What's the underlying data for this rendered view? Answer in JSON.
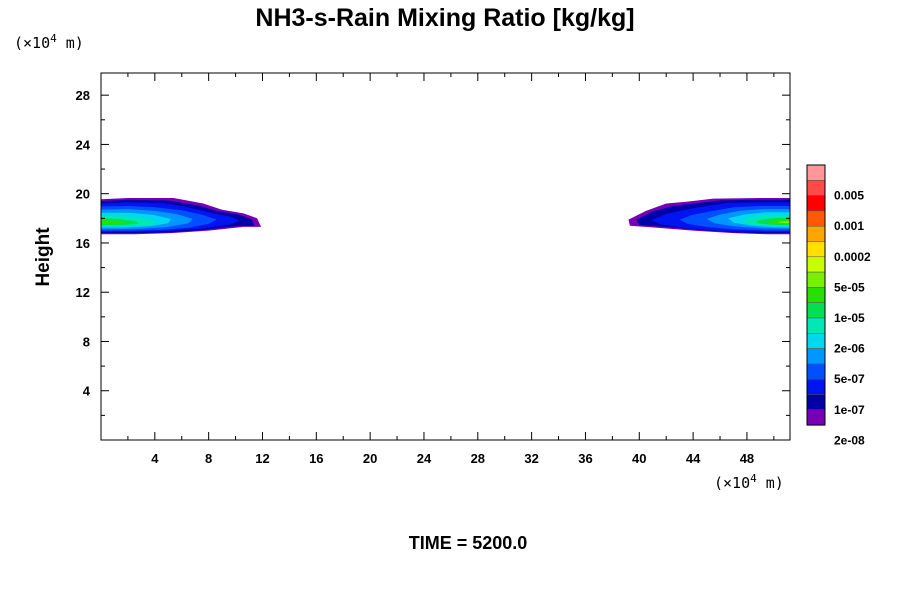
{
  "chart_data": {
    "type": "contour",
    "title": "NH3-s-Rain Mixing Ratio [kg/kg]",
    "xlabel": "",
    "ylabel": "Height",
    "x_unit": {
      "prefix": "(×10",
      "exp": "4",
      "suffix": " m)"
    },
    "y_unit": {
      "prefix": "(×10",
      "exp": "4",
      "suffix": " m)"
    },
    "xlim": [
      0,
      51.2
    ],
    "ylim": [
      0,
      29.8
    ],
    "x_ticks": [
      4,
      8,
      12,
      16,
      20,
      24,
      28,
      32,
      36,
      40,
      44,
      48
    ],
    "y_ticks": [
      4,
      8,
      12,
      16,
      20,
      24,
      28
    ],
    "x_minor_step": 2,
    "y_minor_step": 2,
    "time_label": "TIME = 5200.0",
    "colorbar": {
      "colors": [
        "#ff9999",
        "#ff4a4a",
        "#ff0000",
        "#ff5a00",
        "#ffa500",
        "#ffe000",
        "#c8ff00",
        "#78f000",
        "#28e000",
        "#00e050",
        "#00e8b4",
        "#00d8f0",
        "#0096ff",
        "#0050ff",
        "#0014f0",
        "#0000a8",
        "#7800b4"
      ],
      "labels": [
        {
          "text": "0.005",
          "boundary": 2
        },
        {
          "text": "0.001",
          "boundary": 4
        },
        {
          "text": "0.0002",
          "boundary": 6
        },
        {
          "text": "5e-05",
          "boundary": 8
        },
        {
          "text": "1e-05",
          "boundary": 10
        },
        {
          "text": "2e-06",
          "boundary": 12
        },
        {
          "text": "5e-07",
          "boundary": 14
        },
        {
          "text": "1e-07",
          "boundary": 16
        },
        {
          "text": "2e-08",
          "boundary": 18
        }
      ]
    },
    "regions": [
      {
        "side": "left",
        "color": "#7800b4",
        "x": [
          [
            0,
            19.55
          ],
          [
            2,
            19.65
          ],
          [
            5.4,
            19.65
          ],
          [
            7.6,
            19.2
          ],
          [
            9,
            18.7
          ],
          [
            10.6,
            18.4
          ],
          [
            11.6,
            18.0
          ],
          [
            11.9,
            17.3
          ],
          [
            10.6,
            17.3
          ],
          [
            8,
            17.0
          ],
          [
            5.2,
            16.8
          ],
          [
            2.5,
            16.7
          ],
          [
            0,
            16.7
          ]
        ]
      },
      {
        "side": "left",
        "color": "#0000a8",
        "x": [
          [
            0,
            19.4
          ],
          [
            2,
            19.5
          ],
          [
            5,
            19.45
          ],
          [
            7.2,
            19.05
          ],
          [
            8.6,
            18.6
          ],
          [
            10.3,
            18.3
          ],
          [
            11.2,
            17.9
          ],
          [
            11.4,
            17.4
          ],
          [
            10,
            17.35
          ],
          [
            7.6,
            17.05
          ],
          [
            5,
            16.85
          ],
          [
            2.4,
            16.8
          ],
          [
            0,
            16.8
          ]
        ]
      },
      {
        "side": "left",
        "color": "#0014f0",
        "x": [
          [
            0,
            19.2
          ],
          [
            2,
            19.3
          ],
          [
            4.6,
            19.25
          ],
          [
            6.5,
            18.9
          ],
          [
            8,
            18.5
          ],
          [
            9.6,
            18.15
          ],
          [
            10.3,
            17.8
          ],
          [
            9.6,
            17.5
          ],
          [
            7.4,
            17.15
          ],
          [
            4.8,
            16.95
          ],
          [
            2.2,
            16.9
          ],
          [
            0,
            16.9
          ]
        ]
      },
      {
        "side": "left",
        "color": "#0050ff",
        "x": [
          [
            0,
            18.95
          ],
          [
            2,
            19.0
          ],
          [
            4,
            18.9
          ],
          [
            6,
            18.65
          ],
          [
            7.5,
            18.3
          ],
          [
            8.6,
            17.9
          ],
          [
            8,
            17.55
          ],
          [
            6.5,
            17.25
          ],
          [
            4.5,
            17.05
          ],
          [
            2,
            17.0
          ],
          [
            0,
            17.0
          ]
        ]
      },
      {
        "side": "left",
        "color": "#0096ff",
        "x": [
          [
            0,
            18.7
          ],
          [
            2,
            18.75
          ],
          [
            4,
            18.6
          ],
          [
            5.6,
            18.35
          ],
          [
            6.8,
            17.95
          ],
          [
            6.5,
            17.6
          ],
          [
            5,
            17.3
          ],
          [
            3,
            17.15
          ],
          [
            0,
            17.1
          ]
        ]
      },
      {
        "side": "left",
        "color": "#00d8f0",
        "x": [
          [
            0,
            18.45
          ],
          [
            2,
            18.45
          ],
          [
            3.8,
            18.3
          ],
          [
            5.2,
            17.95
          ],
          [
            5,
            17.6
          ],
          [
            3.6,
            17.35
          ],
          [
            1.6,
            17.25
          ],
          [
            0,
            17.25
          ]
        ]
      },
      {
        "side": "left",
        "color": "#00e8b4",
        "x": [
          [
            0,
            18.2
          ],
          [
            1.6,
            18.2
          ],
          [
            3.2,
            18.0
          ],
          [
            4.2,
            17.7
          ],
          [
            3.5,
            17.45
          ],
          [
            1.6,
            17.35
          ],
          [
            0,
            17.35
          ]
        ]
      },
      {
        "side": "left",
        "color": "#00e050",
        "x": [
          [
            0,
            18.0
          ],
          [
            1.4,
            17.95
          ],
          [
            2.6,
            17.75
          ],
          [
            2.8,
            17.55
          ],
          [
            1.6,
            17.45
          ],
          [
            0,
            17.45
          ]
        ]
      },
      {
        "side": "left",
        "color": "#28e000",
        "x": [
          [
            0,
            17.85
          ],
          [
            1.2,
            17.8
          ],
          [
            1.9,
            17.65
          ],
          [
            1.2,
            17.52
          ],
          [
            0,
            17.52
          ]
        ]
      },
      {
        "side": "right",
        "color": "#7800b4",
        "x": [
          [
            51.2,
            19.65
          ],
          [
            49,
            19.65
          ],
          [
            45.5,
            19.6
          ],
          [
            43.5,
            19.35
          ],
          [
            42,
            19.2
          ],
          [
            40.5,
            18.6
          ],
          [
            39.2,
            17.9
          ],
          [
            39.3,
            17.4
          ],
          [
            41.2,
            17.25
          ],
          [
            44,
            17.0
          ],
          [
            47,
            16.8
          ],
          [
            49.5,
            16.7
          ],
          [
            51.2,
            16.7
          ]
        ]
      },
      {
        "side": "right",
        "color": "#0000a8",
        "x": [
          [
            51.2,
            19.5
          ],
          [
            49,
            19.5
          ],
          [
            46,
            19.45
          ],
          [
            44,
            19.2
          ],
          [
            42.5,
            19.0
          ],
          [
            41,
            18.55
          ],
          [
            39.8,
            17.9
          ],
          [
            40,
            17.45
          ],
          [
            42,
            17.3
          ],
          [
            44.5,
            17.05
          ],
          [
            47.2,
            16.85
          ],
          [
            49.6,
            16.8
          ],
          [
            51.2,
            16.8
          ]
        ]
      },
      {
        "side": "right",
        "color": "#0014f0",
        "x": [
          [
            51.2,
            19.3
          ],
          [
            49,
            19.3
          ],
          [
            46.6,
            19.25
          ],
          [
            45,
            19.0
          ],
          [
            43.4,
            18.7
          ],
          [
            42,
            18.35
          ],
          [
            40.9,
            17.85
          ],
          [
            41.6,
            17.5
          ],
          [
            43.6,
            17.2
          ],
          [
            46.2,
            16.95
          ],
          [
            48.8,
            16.9
          ],
          [
            51.2,
            16.9
          ]
        ]
      },
      {
        "side": "right",
        "color": "#0050ff",
        "x": [
          [
            51.2,
            19.0
          ],
          [
            49,
            19.0
          ],
          [
            47,
            18.9
          ],
          [
            45.5,
            18.6
          ],
          [
            44,
            18.3
          ],
          [
            43,
            17.9
          ],
          [
            43.6,
            17.55
          ],
          [
            45,
            17.3
          ],
          [
            47,
            17.1
          ],
          [
            49.3,
            17.0
          ],
          [
            51.2,
            17.0
          ]
        ]
      },
      {
        "side": "right",
        "color": "#0096ff",
        "x": [
          [
            51.2,
            18.75
          ],
          [
            49.2,
            18.75
          ],
          [
            47.4,
            18.6
          ],
          [
            46,
            18.3
          ],
          [
            45,
            17.95
          ],
          [
            45.6,
            17.6
          ],
          [
            47,
            17.35
          ],
          [
            49,
            17.2
          ],
          [
            51.2,
            17.15
          ]
        ]
      },
      {
        "side": "right",
        "color": "#00d8f0",
        "x": [
          [
            51.2,
            18.5
          ],
          [
            49.4,
            18.5
          ],
          [
            47.8,
            18.3
          ],
          [
            46.6,
            18.0
          ],
          [
            47,
            17.65
          ],
          [
            48.4,
            17.4
          ],
          [
            50,
            17.28
          ],
          [
            51.2,
            17.25
          ]
        ]
      },
      {
        "side": "right",
        "color": "#00e8b4",
        "x": [
          [
            51.2,
            18.25
          ],
          [
            49.6,
            18.25
          ],
          [
            48.2,
            18.05
          ],
          [
            47.6,
            17.75
          ],
          [
            48.4,
            17.5
          ],
          [
            49.8,
            17.38
          ],
          [
            51.2,
            17.35
          ]
        ]
      },
      {
        "side": "right",
        "color": "#00e050",
        "x": [
          [
            51.2,
            18.05
          ],
          [
            49.8,
            18.0
          ],
          [
            48.8,
            17.8
          ],
          [
            48.7,
            17.6
          ],
          [
            49.8,
            17.48
          ],
          [
            51.2,
            17.45
          ]
        ]
      },
      {
        "side": "right",
        "color": "#28e000",
        "x": [
          [
            51.2,
            17.88
          ],
          [
            50.2,
            17.85
          ],
          [
            49.5,
            17.7
          ],
          [
            50,
            17.55
          ],
          [
            51.2,
            17.52
          ]
        ]
      },
      {
        "side": "right",
        "color": "#78f000",
        "x": [
          [
            51.2,
            17.78
          ],
          [
            50.5,
            17.74
          ],
          [
            50.3,
            17.65
          ],
          [
            51.2,
            17.6
          ]
        ]
      }
    ]
  }
}
